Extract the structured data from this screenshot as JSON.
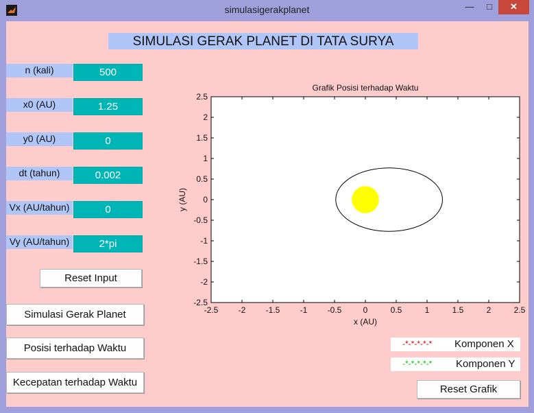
{
  "window": {
    "title": "simulasigerakplanet",
    "minimize": "—",
    "maximize": "□",
    "close": "✕"
  },
  "header": {
    "title": "SIMULASI GERAK PLANET DI TATA SURYA"
  },
  "inputs": [
    {
      "label": "n (kali)",
      "value": "500"
    },
    {
      "label": "x0 (AU)",
      "value": "1.25"
    },
    {
      "label": "y0 (AU)",
      "value": "0"
    },
    {
      "label": "dt (tahun)",
      "value": "0.002"
    },
    {
      "label": "Vx (AU/tahun)",
      "value": "0"
    },
    {
      "label": "Vy (AU/tahun)",
      "value": "2*pi"
    }
  ],
  "buttons": {
    "reset_input": "Reset Input",
    "simulasi": "Simulasi Gerak Planet",
    "posisi": "Posisi terhadap Waktu",
    "kecepatan": "Kecepatan terhadap Waktu",
    "reset_grafik": "Reset Grafik"
  },
  "legend": [
    {
      "marker": "-*-*-*-*-*",
      "label": "Komponen X",
      "color": "#e00000"
    },
    {
      "marker": "-*-*-*-*-*",
      "label": "Komponen Y",
      "color": "#00cc00"
    }
  ],
  "chart_data": {
    "type": "line",
    "title": "Grafik Posisi terhadap Waktu",
    "xlabel": "x (AU)",
    "ylabel": "y (AU)",
    "xlim": [
      -2.5,
      2.5
    ],
    "ylim": [
      -2.5,
      2.5
    ],
    "xticks": [
      "-2.5",
      "-2",
      "-1.5",
      "-1",
      "-0.5",
      "0",
      "0.5",
      "1",
      "1.5",
      "2",
      "2.5"
    ],
    "yticks": [
      "2.5",
      "2",
      "1.5",
      "1",
      "0.5",
      "0",
      "-0.5",
      "-1",
      "-1.5",
      "-2",
      "-2.5"
    ],
    "grid": false,
    "orbit": {
      "x_min": -0.48,
      "x_max": 1.25,
      "y_min": -0.77,
      "y_max": 0.77
    },
    "sun": {
      "x": 0,
      "y": 0,
      "radius": 0.22,
      "color": "#ffff00"
    },
    "orbit_color": "#000000"
  }
}
